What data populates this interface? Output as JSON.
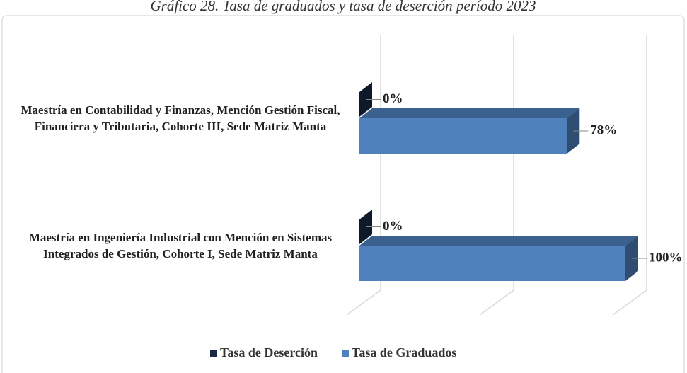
{
  "chart_data": {
    "type": "bar3d_horizontal",
    "title": "Gráfico 28. Tasa de graduados y tasa de deserción período 2023",
    "categories": [
      "Maestría en Contabilidad y Finanzas, Mención Gestión Fiscal, Financiera y Tributaria, Cohorte III, Sede Matriz Manta",
      "Maestría en Ingeniería Industrial con Mención en Sistemas Integrados de Gestión, Cohorte I, Sede Matriz Manta"
    ],
    "series": [
      {
        "name": "Tasa de Deserción",
        "color": "#1a2a44",
        "values": [
          0,
          0
        ],
        "value_labels": [
          "0%",
          "0%"
        ]
      },
      {
        "name": "Tasa de Graduados",
        "color": "#4f81bd",
        "values": [
          78,
          100
        ],
        "value_labels": [
          "78%",
          "100%"
        ]
      }
    ],
    "xlim": [
      0,
      100
    ],
    "xticks": [
      0,
      50,
      100
    ],
    "show_tick_labels": false,
    "grid": true,
    "legend": "bottom"
  }
}
